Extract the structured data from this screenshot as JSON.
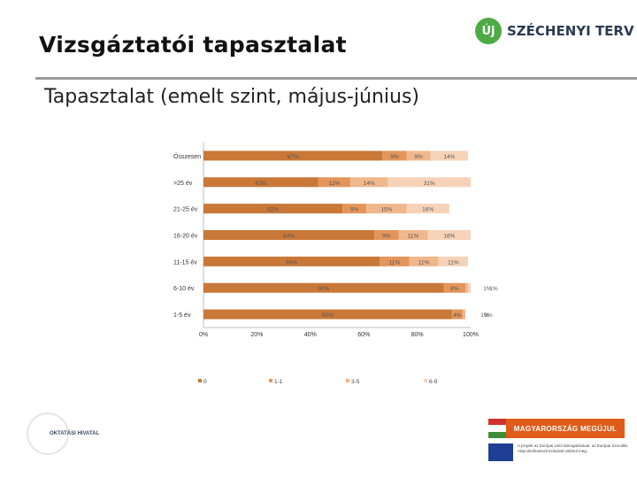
{
  "header": {
    "title": "Vizsgáztatói tapasztalat",
    "brand_logo": "Új",
    "brand_name": "SZÉCHENYI TERV"
  },
  "subtitle": "Tapasztalat (emelt szint, május-június)",
  "colors": {
    "title_rule": "#9a9a9a",
    "brand_green": "#4daa45"
  },
  "chart_data": {
    "type": "bar",
    "orientation": "horizontal",
    "stacked": true,
    "percent": true,
    "categories": [
      "Összesen",
      ">25 év",
      "21-25 év",
      "16-20 év",
      "11-15 év",
      "6-10 év",
      "1-5 év"
    ],
    "series": [
      {
        "name": "0",
        "color": "#c97838",
        "values": [
          67,
          43,
          52,
          64,
          66,
          90,
          93
        ],
        "labels": [
          "67%",
          "43%",
          "52%",
          "64%",
          "66%",
          "90%",
          "93%"
        ]
      },
      {
        "name": "1-1",
        "color": "#e3955a",
        "values": [
          9,
          12,
          9,
          9,
          11,
          8,
          4
        ],
        "labels": [
          "9%",
          "12%",
          "9%",
          "9%",
          "11%",
          "8%",
          "4%"
        ]
      },
      {
        "name": "3-5",
        "color": "#f0b68c",
        "values": [
          9,
          14,
          15,
          11,
          11,
          1,
          1
        ],
        "labels": [
          "9%",
          "14%",
          "15%",
          "11%",
          "11%",
          "1%",
          "1%"
        ]
      },
      {
        "name": "6-9",
        "color": "#f6d3b8",
        "values": [
          14,
          31,
          16,
          16,
          11,
          1,
          0
        ],
        "labels": [
          "14%",
          "31%",
          "16%",
          "16%",
          "11%",
          "1%",
          "0%"
        ]
      }
    ],
    "xaxis": {
      "ticks": [
        "0%",
        "20%",
        "40%",
        "60%",
        "80%",
        "100%"
      ],
      "range": [
        0,
        100
      ]
    },
    "legend_position": "bottom",
    "grid": false
  },
  "footer": {
    "left_logo_text": "OKTATÁSI HIVATAL",
    "badge_text": "MAGYARORSZÁG MEGÚJUL",
    "eu_text": "A projekt az Európai Unió támogatásával, az Európai Szociális Alap társfinanszírozásával valósul meg."
  }
}
